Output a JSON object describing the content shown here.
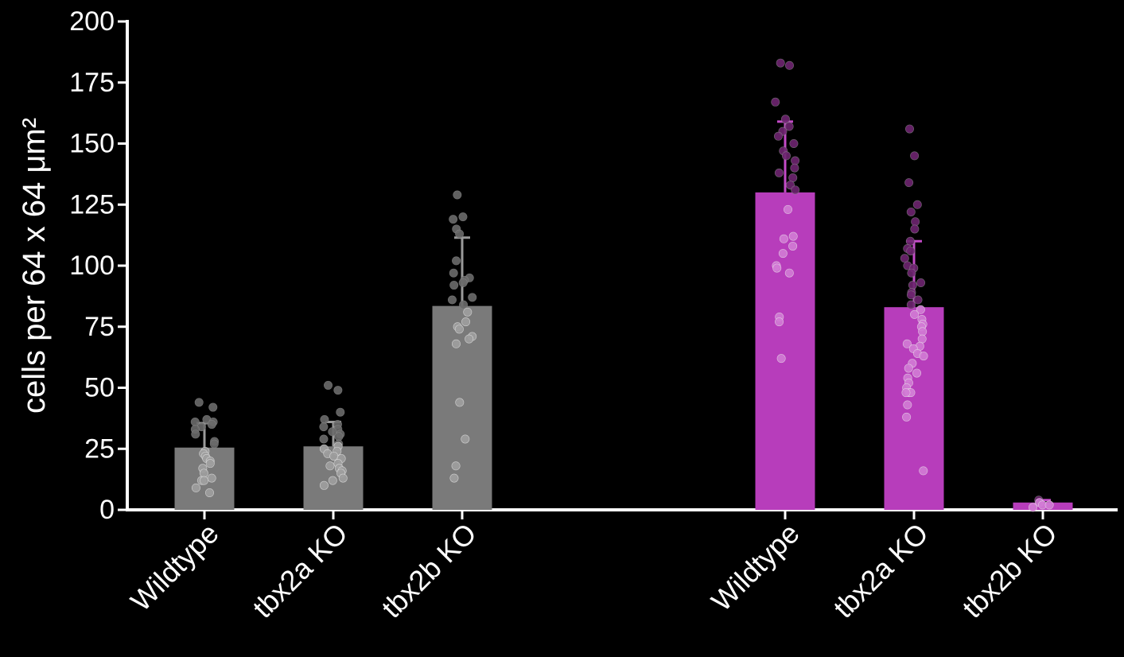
{
  "chart_data": {
    "type": "bar",
    "title": "",
    "ylabel": "cells per 64 x 64 μm²",
    "ylim": [
      0,
      200
    ],
    "yticks": [
      0,
      25,
      50,
      75,
      100,
      125,
      150,
      175,
      200
    ],
    "grid": false,
    "groups": [
      {
        "color": "#7a7a7a",
        "bars": [
          {
            "category": "Wildtype",
            "value": 25.5,
            "error": 10,
            "points": [
              44,
              42,
              37,
              36,
              36,
              35,
              34,
              33,
              31,
              28,
              27,
              24,
              23,
              22,
              21,
              20,
              19,
              17,
              15,
              13,
              12,
              12,
              9,
              7
            ]
          },
          {
            "category": "tbx2a KO",
            "value": 26,
            "error": 10,
            "points": [
              51,
              49,
              40,
              37,
              35,
              34,
              33,
              32,
              31,
              30,
              29,
              27,
              26,
              25,
              24,
              23,
              22,
              21,
              19,
              18,
              17,
              16,
              15,
              13,
              12,
              10
            ]
          },
          {
            "category": "tbx2b KO",
            "value": 83.5,
            "error": 28,
            "points": [
              129,
              120,
              119,
              115,
              113,
              102,
              97,
              95,
              94,
              93,
              92,
              87,
              86,
              84,
              81,
              77,
              75,
              74,
              71,
              70,
              68,
              44,
              29,
              18,
              13
            ]
          }
        ]
      },
      {
        "color": "#b73dbb",
        "bars": [
          {
            "category": "Wildtype",
            "value": 130,
            "error": 29,
            "points": [
              183,
              182,
              167,
              160,
              157,
              155,
              153,
              150,
              147,
              145,
              143,
              140,
              138,
              136,
              133,
              131,
              123,
              112,
              111,
              108,
              105,
              100,
              99,
              97,
              79,
              77,
              62
            ]
          },
          {
            "category": "tbx2a KO",
            "value": 83,
            "error": 27,
            "points": [
              156,
              145,
              134,
              125,
              122,
              118,
              115,
              110,
              107,
              106,
              103,
              100,
              99,
              97,
              93,
              92,
              89,
              88,
              86,
              84,
              82,
              80,
              78,
              76,
              75,
              73,
              70,
              68,
              67,
              66,
              64,
              63,
              60,
              58,
              56,
              54,
              52,
              50,
              48,
              48,
              48,
              43,
              38,
              16
            ]
          },
          {
            "category": "tbx2b KO",
            "value": 3,
            "error": 1,
            "points": [
              4,
              3,
              2,
              2,
              1
            ]
          }
        ]
      }
    ]
  }
}
